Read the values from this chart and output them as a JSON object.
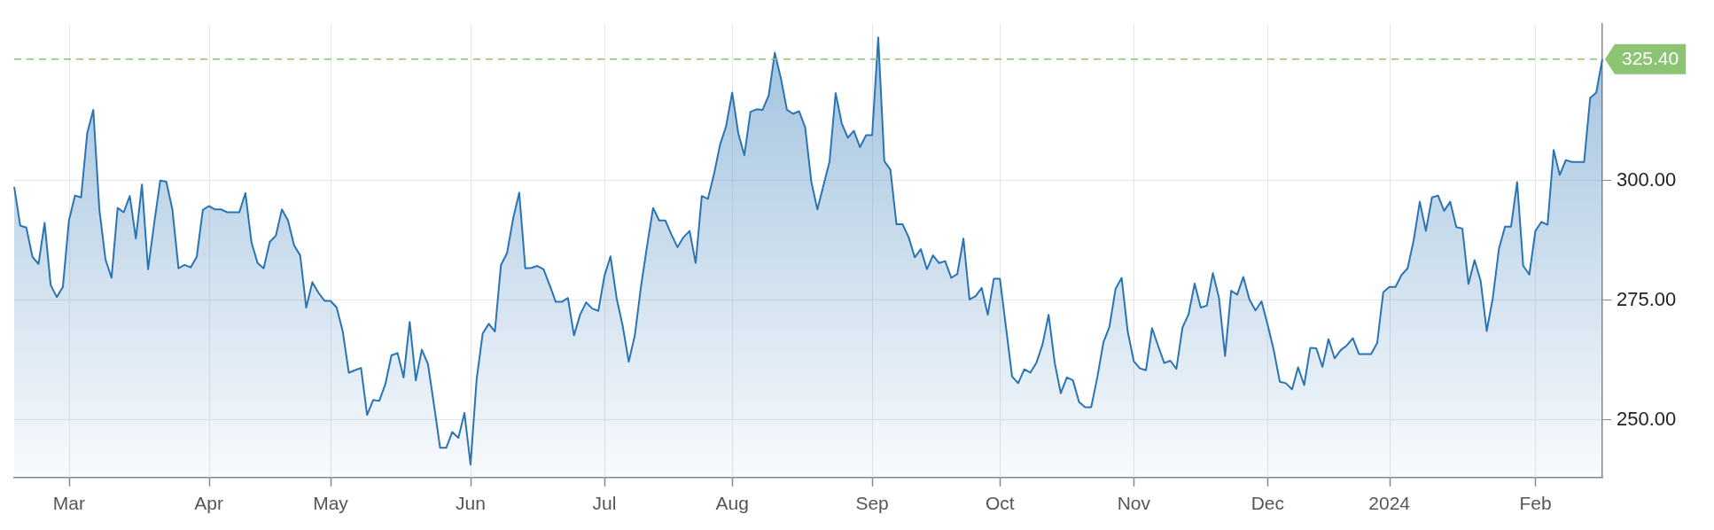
{
  "chart_data": {
    "type": "area",
    "categories": [
      null,
      null,
      null,
      null,
      null,
      null,
      null,
      null,
      null,
      "Mar",
      null,
      null,
      null,
      null,
      null,
      null,
      null,
      null,
      null,
      null,
      null,
      null,
      null,
      null,
      null,
      null,
      null,
      null,
      null,
      null,
      null,
      null,
      "Apr",
      null,
      null,
      null,
      null,
      null,
      null,
      null,
      null,
      null,
      null,
      null,
      null,
      null,
      null,
      null,
      null,
      null,
      null,
      null,
      "May",
      null,
      null,
      null,
      null,
      null,
      null,
      null,
      null,
      null,
      null,
      null,
      null,
      null,
      null,
      null,
      null,
      null,
      null,
      null,
      null,
      null,
      null,
      "Jun",
      null,
      null,
      null,
      null,
      null,
      null,
      null,
      null,
      null,
      null,
      null,
      null,
      null,
      null,
      null,
      null,
      null,
      null,
      null,
      null,
      null,
      "Jul",
      null,
      null,
      null,
      null,
      null,
      null,
      null,
      null,
      null,
      null,
      null,
      null,
      null,
      null,
      null,
      null,
      null,
      null,
      null,
      null,
      "Aug",
      null,
      null,
      null,
      null,
      null,
      null,
      null,
      null,
      null,
      null,
      null,
      null,
      null,
      null,
      null,
      null,
      null,
      null,
      null,
      null,
      null,
      null,
      "Sep",
      null,
      null,
      null,
      null,
      null,
      null,
      null,
      null,
      null,
      null,
      null,
      null,
      null,
      null,
      null,
      null,
      null,
      null,
      null,
      null,
      "Oct",
      null,
      null,
      null,
      null,
      null,
      null,
      null,
      null,
      null,
      null,
      null,
      null,
      null,
      null,
      null,
      null,
      null,
      null,
      null,
      null,
      null,
      "Nov",
      null,
      null,
      null,
      null,
      null,
      null,
      null,
      null,
      null,
      null,
      null,
      null,
      null,
      null,
      null,
      null,
      null,
      null,
      null,
      null,
      null,
      "Dec",
      null,
      null,
      null,
      null,
      null,
      null,
      null,
      null,
      null,
      null,
      null,
      null,
      null,
      null,
      null,
      null,
      null,
      null,
      null,
      "2024",
      null,
      null,
      null,
      null,
      null,
      null,
      null,
      null,
      null,
      null,
      null,
      null,
      null,
      null,
      null,
      null,
      null,
      null,
      null,
      null,
      null,
      null,
      null,
      "Feb",
      null,
      null,
      null,
      null,
      null,
      null,
      null,
      null,
      null,
      null,
      null
    ],
    "series": [
      {
        "color": "#2a74b4",
        "values": [
          298.7,
          290.6,
          290.2,
          284.1,
          282.6,
          291.2,
          278.2,
          275.7,
          277.8,
          291.7,
          296.9,
          296.5,
          309.9,
          314.8,
          294.0,
          283.6,
          279.7,
          294.3,
          293.4,
          296.8,
          287.9,
          299.2,
          281.5,
          291.0,
          300.0,
          299.8,
          294.0,
          281.7,
          282.4,
          281.9,
          284.1,
          293.9,
          294.7,
          294.0,
          294.0,
          293.4,
          293.4,
          293.4,
          297.4,
          287.1,
          282.8,
          281.7,
          287.2,
          288.5,
          294.0,
          291.7,
          286.5,
          284.4,
          273.5,
          278.8,
          276.6,
          274.9,
          274.9,
          273.5,
          268.5,
          259.9,
          260.4,
          260.9,
          251.1,
          254.2,
          254.0,
          257.5,
          263.5,
          264.0,
          258.9,
          270.5,
          258.3,
          264.7,
          261.7,
          253.1,
          244.2,
          244.2,
          247.5,
          246.3,
          251.5,
          240.7,
          258.5,
          268.1,
          270.1,
          268.5,
          282.4,
          284.9,
          292.1,
          297.5,
          281.7,
          281.8,
          282.2,
          281.5,
          278.2,
          274.7,
          274.7,
          275.5,
          267.7,
          272.0,
          274.6,
          273.3,
          272.8,
          280.1,
          284.2,
          275.5,
          269.7,
          262.2,
          267.7,
          277.8,
          286.3,
          294.3,
          291.7,
          291.7,
          288.8,
          286.1,
          288.2,
          289.5,
          282.8,
          296.8,
          296.2,
          301.3,
          307.5,
          311.4,
          318.4,
          309.9,
          305.3,
          314.4,
          314.9,
          314.8,
          317.8,
          326.7,
          321.4,
          314.8,
          314.0,
          314.5,
          311.1,
          299.8,
          294.0,
          299.0,
          304.0,
          318.3,
          312.0,
          309.0,
          310.4,
          307.0,
          309.5,
          309.5,
          329.9,
          304.1,
          302.3,
          290.9,
          290.9,
          288.2,
          284.0,
          285.7,
          281.5,
          284.4,
          282.8,
          283.2,
          279.7,
          280.5,
          287.9,
          275.2,
          275.9,
          277.6,
          272.0,
          279.5,
          279.5,
          269.3,
          259.1,
          257.7,
          260.6,
          259.9,
          262.0,
          265.8,
          272.0,
          262.0,
          255.6,
          258.9,
          258.3,
          253.8,
          252.7,
          252.7,
          258.9,
          266.2,
          269.5,
          277.4,
          279.7,
          268.5,
          262.3,
          260.8,
          260.4,
          269.2,
          265.5,
          261.9,
          262.4,
          260.7,
          269.3,
          272.1,
          278.5,
          273.5,
          273.9,
          280.7,
          275.5,
          263.4,
          277.0,
          276.2,
          279.9,
          275.2,
          272.9,
          274.8,
          269.9,
          264.6,
          258.0,
          257.7,
          256.4,
          261.0,
          257.3,
          265.1,
          265.0,
          261.1,
          266.9,
          262.9,
          264.6,
          265.6,
          267.1,
          263.8,
          263.8,
          263.8,
          266.1,
          276.7,
          277.8,
          277.8,
          280.3,
          281.7,
          287.6,
          295.6,
          289.5,
          296.5,
          296.9,
          293.7,
          295.6,
          290.3,
          290.0,
          278.4,
          283.4,
          279.1,
          268.6,
          275.5,
          285.7,
          290.4,
          290.4,
          299.7,
          282.2,
          280.4,
          289.5,
          291.4,
          290.8,
          306.4,
          301.2,
          304.3,
          303.9,
          303.9,
          303.9,
          317.3,
          318.4,
          325.4
        ]
      }
    ],
    "ylim": [
      238,
      332.7
    ],
    "yticks": [
      {
        "value": 250,
        "label": "250.00"
      },
      {
        "value": 275,
        "label": "275.00"
      },
      {
        "value": 300,
        "label": "300.00"
      }
    ],
    "ref_lines": [
      {
        "axis": "y",
        "value": 325.4,
        "label": "325.40",
        "color": "#8cc474",
        "line_style": "dashed"
      }
    ],
    "grid": true,
    "legend": false,
    "marker": "none",
    "line_style": "solid"
  }
}
